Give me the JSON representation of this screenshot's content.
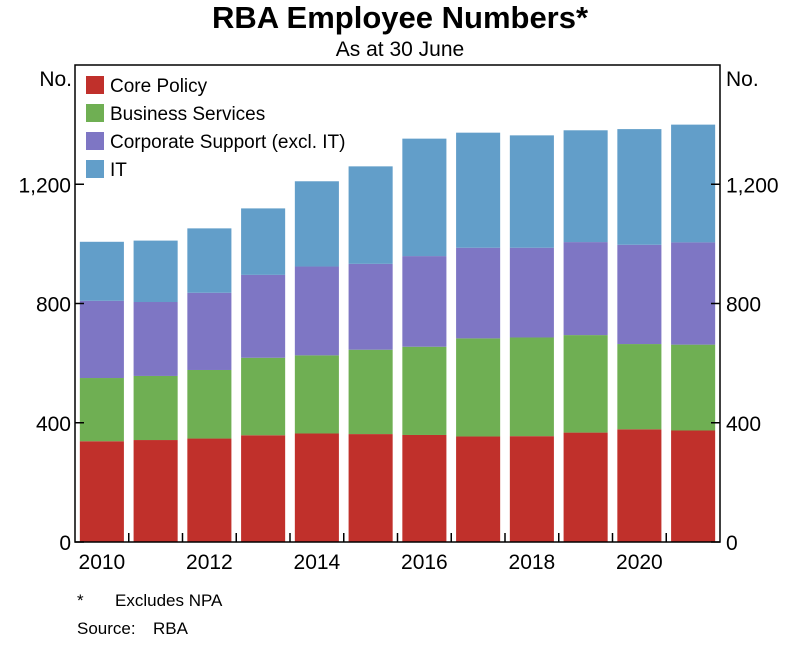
{
  "chart_data": {
    "type": "bar",
    "stacked": true,
    "title": "RBA Employee Numbers*",
    "subtitle": "As at 30 June",
    "ylabel_left": "No.",
    "ylabel_right": "No.",
    "ylim": [
      0,
      1600
    ],
    "yticks": [
      0,
      400,
      800,
      1200
    ],
    "ytick_labels": [
      "0",
      "400",
      "800",
      "1,200"
    ],
    "xticks": [
      "2010",
      "2012",
      "2014",
      "2016",
      "2018",
      "2020"
    ],
    "categories": [
      "2010",
      "2011",
      "2012",
      "2013",
      "2014",
      "2015",
      "2016",
      "2017",
      "2018",
      "2019",
      "2020",
      "2021"
    ],
    "series": [
      {
        "name": "Core Policy",
        "color": "#c0302b",
        "values": [
          338,
          342,
          347,
          358,
          364,
          362,
          359,
          354,
          355,
          367,
          378,
          374
        ]
      },
      {
        "name": "Business Services",
        "color": "#6faf53",
        "values": [
          212,
          215,
          230,
          260,
          262,
          283,
          296,
          329,
          331,
          327,
          286,
          288
        ]
      },
      {
        "name": "Corporate Support (excl. IT)",
        "color": "#7e76c4",
        "values": [
          259,
          248,
          259,
          278,
          298,
          288,
          304,
          304,
          301,
          312,
          333,
          343
        ]
      },
      {
        "name": "IT",
        "color": "#629ec9",
        "values": [
          198,
          206,
          216,
          223,
          286,
          327,
          394,
          386,
          377,
          375,
          388,
          395
        ]
      }
    ],
    "legend_position": "top-left",
    "grid": false
  },
  "notes": {
    "footnote_mark": "*",
    "footnote_text": "Excludes NPA",
    "source_label": "Source:",
    "source_text": "RBA"
  }
}
